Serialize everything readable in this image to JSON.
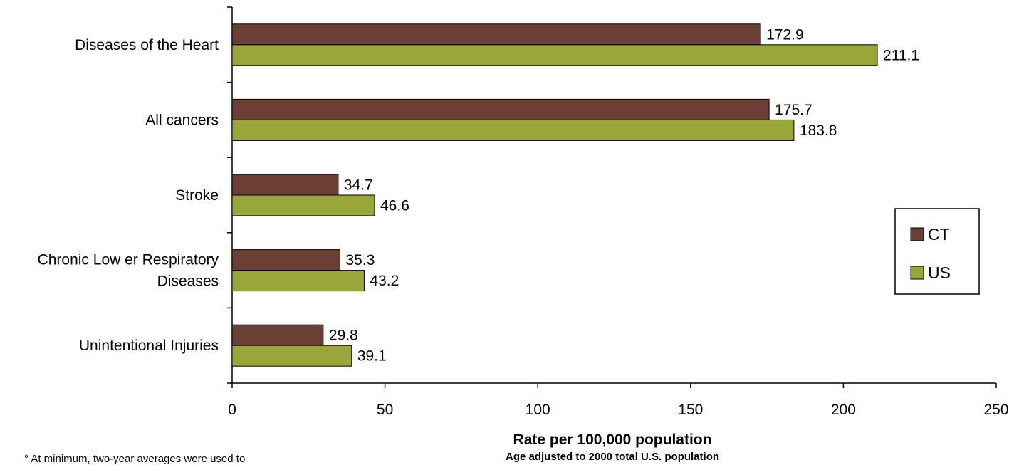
{
  "chart_data": {
    "type": "bar",
    "orientation": "horizontal",
    "categories": [
      [
        "Diseases of the Heart"
      ],
      [
        "All cancers"
      ],
      [
        "Stroke"
      ],
      [
        "Chronic Low er Respiratory",
        "Diseases"
      ],
      [
        "Unintentional Injuries"
      ]
    ],
    "series": [
      {
        "name": "CT",
        "color": "#6b3f35",
        "values": [
          172.9,
          175.7,
          34.7,
          35.3,
          29.8
        ]
      },
      {
        "name": "US",
        "color": "#9aa63a",
        "values": [
          211.1,
          183.8,
          46.6,
          43.2,
          39.1
        ]
      }
    ],
    "value_labels": [
      [
        "172.9",
        "175.7",
        "34.7",
        "35.3",
        "29.8"
      ],
      [
        "211.1",
        "183.8",
        "46.6",
        "43.2",
        "39.1"
      ]
    ],
    "xlim": [
      0,
      250
    ],
    "xticks": [
      0,
      50,
      100,
      150,
      200,
      250
    ],
    "xlabel": "Rate per 100,000 population",
    "xlabel_sub": "Age adjusted to 2000 total U.S. population",
    "legend_position": "right",
    "grid": false
  },
  "footnote": "° At minimum, two-year averages were used to"
}
